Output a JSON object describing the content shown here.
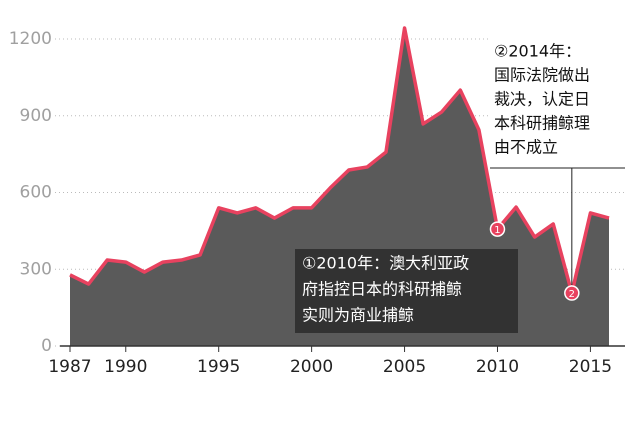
{
  "chart_data": {
    "type": "area",
    "x": [
      1987,
      1988,
      1989,
      1990,
      1991,
      1992,
      1993,
      1994,
      1995,
      1996,
      1997,
      1998,
      1999,
      2000,
      2001,
      2002,
      2003,
      2004,
      2005,
      2006,
      2007,
      2008,
      2009,
      2010,
      2011,
      2012,
      2013,
      2014,
      2015,
      2016
    ],
    "series": [
      {
        "color": "#e8425f",
        "fill": "#5a5a5a",
        "values": [
          278,
          242,
          336,
          328,
          289,
          328,
          336,
          356,
          540,
          520,
          540,
          500,
          540,
          540,
          618,
          688,
          700,
          758,
          1243,
          868,
          915,
          1000,
          845,
          457,
          543,
          426,
          477,
          207,
          520,
          500
        ]
      }
    ],
    "xlim": [
      1987,
      2016
    ],
    "xticks": [
      1987,
      1990,
      1995,
      2000,
      2005,
      2010,
      2015
    ],
    "ylim": [
      0,
      1200
    ],
    "yticks": [
      0,
      300,
      600,
      900,
      1200
    ],
    "grid": true,
    "annotations": [
      {
        "marker": "1",
        "x": 2010,
        "lines": [
          "①2010年：澳大利亚政",
          "府指控日本的科研捕鲸",
          "实则为商业捕鲸"
        ]
      },
      {
        "marker": "2",
        "x": 2014,
        "lines": [
          "②2014年：",
          "国际法院做出",
          "裁决，认定日",
          "本科研捕鲸理",
          "由不成立"
        ]
      }
    ]
  }
}
